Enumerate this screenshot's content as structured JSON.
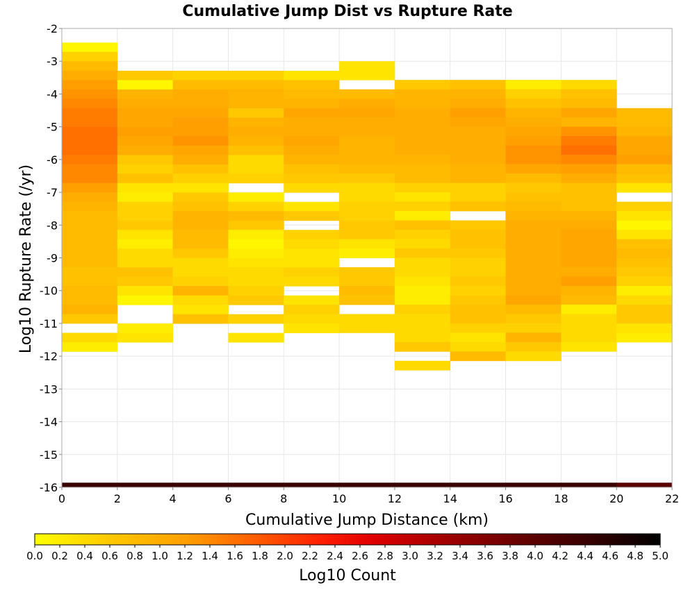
{
  "chart_data": {
    "type": "heatmap",
    "title": "Cumulative Jump Dist vs Rupture Rate",
    "xlabel": "Cumulative Jump Distance (km)",
    "ylabel": "Log10 Rupture Rate (/yr)",
    "xlim": [
      0,
      22
    ],
    "ylim": [
      -16,
      -2
    ],
    "x_ticks": [
      "0",
      "2",
      "4",
      "6",
      "8",
      "10",
      "12",
      "14",
      "16",
      "18",
      "20",
      "22"
    ],
    "y_ticks": [
      "-2",
      "-3",
      "-4",
      "-5",
      "-6",
      "-7",
      "-8",
      "-9",
      "-10",
      "-11",
      "-12",
      "-13",
      "-14",
      "-15",
      "-16"
    ],
    "grid": true,
    "x_bin_width": 2,
    "y_bin_height": 0.2857,
    "colorbar": {
      "label": "Log10 Count",
      "min": 0.0,
      "max": 5.0,
      "ticks": [
        "0.0",
        "0.2",
        "0.4",
        "0.6",
        "0.8",
        "1.0",
        "1.2",
        "1.4",
        "1.6",
        "1.8",
        "2.0",
        "2.2",
        "2.4",
        "2.6",
        "2.8",
        "3.0",
        "3.2",
        "3.4",
        "3.6",
        "3.8",
        "4.0",
        "4.2",
        "4.4",
        "4.6",
        "4.8",
        "5.0"
      ],
      "colormap": [
        [
          0.0,
          "#ffff00"
        ],
        [
          0.6,
          "#ffc800"
        ],
        [
          1.2,
          "#ffa000"
        ],
        [
          1.7,
          "#ff6400"
        ],
        [
          2.3,
          "#ff1e00"
        ],
        [
          2.7,
          "#e00000"
        ],
        [
          3.3,
          "#a00000"
        ],
        [
          3.9,
          "#640000"
        ],
        [
          4.5,
          "#300000"
        ],
        [
          5.0,
          "#000000"
        ]
      ]
    },
    "columns": [
      {
        "x_start": 0,
        "y_top": -2.43,
        "values": [
          0.1,
          0.5,
          0.8,
          1.0,
          1.2,
          1.3,
          1.4,
          1.5,
          1.5,
          1.6,
          1.6,
          1.6,
          1.5,
          1.4,
          1.4,
          1.2,
          1.0,
          0.9,
          0.8,
          0.8,
          0.8,
          0.8,
          0.8,
          0.8,
          0.7,
          0.7,
          0.8,
          0.8,
          0.9,
          0.6,
          null,
          0.4,
          0.2
        ]
      },
      {
        "x_start": 2,
        "y_top": -3.29,
        "values": [
          0.6,
          0.1,
          0.9,
          1.0,
          1.1,
          1.1,
          1.2,
          1.1,
          1.0,
          0.6,
          0.5,
          0.7,
          0.3,
          0.2,
          0.5,
          0.5,
          0.6,
          0.3,
          0.2,
          0.4,
          0.4,
          0.7,
          0.6,
          0.3,
          0.1,
          null,
          null,
          0.2,
          0.3
        ]
      },
      {
        "x_start": 4,
        "y_top": -3.29,
        "values": [
          0.5,
          0.8,
          1.0,
          1.0,
          1.1,
          1.2,
          1.2,
          1.3,
          1.1,
          1.0,
          0.7,
          0.5,
          0.3,
          0.6,
          0.7,
          0.9,
          0.9,
          0.8,
          0.8,
          0.6,
          0.4,
          0.4,
          0.5,
          0.9,
          0.4,
          0.3,
          0.7
        ]
      },
      {
        "x_start": 6,
        "y_top": -3.29,
        "values": [
          0.5,
          0.8,
          0.9,
          0.9,
          0.6,
          0.9,
          1.0,
          0.9,
          0.7,
          0.4,
          0.4,
          0.5,
          null,
          0.2,
          0.5,
          0.8,
          0.6,
          0.2,
          0.1,
          0.2,
          0.3,
          0.4,
          0.4,
          0.5,
          0.6,
          null,
          0.5,
          null,
          0.3
        ]
      },
      {
        "x_start": 8,
        "y_top": -3.29,
        "values": [
          0.3,
          0.7,
          0.8,
          0.9,
          1.1,
          1.0,
          1.0,
          1.1,
          1.0,
          0.9,
          0.7,
          0.6,
          0.4,
          null,
          0.3,
          0.6,
          null,
          0.5,
          0.4,
          0.3,
          0.3,
          0.5,
          0.4,
          null,
          0.3,
          0.5,
          0.4,
          0.3
        ]
      },
      {
        "x_start": 10,
        "y_top": -3.0,
        "values": [
          0.3,
          0.3,
          null,
          0.8,
          1.0,
          1.1,
          1.0,
          1.0,
          0.9,
          0.9,
          0.9,
          0.8,
          0.6,
          0.4,
          0.4,
          0.5,
          0.5,
          0.6,
          0.6,
          0.3,
          0.2,
          null,
          0.6,
          0.6,
          0.8,
          0.7,
          null,
          0.4,
          0.4
        ]
      },
      {
        "x_start": 12,
        "y_top": -3.57,
        "values": [
          0.6,
          0.9,
          0.9,
          1.0,
          1.0,
          1.0,
          1.0,
          1.0,
          0.9,
          0.8,
          0.8,
          0.5,
          0.3,
          0.5,
          0.2,
          0.7,
          0.5,
          0.4,
          0.6,
          0.4,
          0.4,
          0.3,
          0.2,
          0.2,
          0.5,
          0.4,
          0.4,
          0.4,
          0.6,
          null,
          0.4
        ]
      },
      {
        "x_start": 14,
        "y_top": -3.57,
        "values": [
          0.7,
          0.9,
          1.0,
          1.2,
          1.1,
          1.0,
          1.0,
          1.0,
          1.0,
          0.9,
          0.9,
          0.5,
          0.5,
          0.7,
          null,
          0.6,
          0.7,
          0.7,
          0.6,
          0.5,
          0.5,
          0.6,
          0.5,
          0.6,
          0.7,
          0.7,
          0.5,
          0.3,
          0.4,
          0.8
        ]
      },
      {
        "x_start": 16,
        "y_top": -3.57,
        "values": [
          0.2,
          0.5,
          0.7,
          0.9,
          1.0,
          1.1,
          1.2,
          1.3,
          1.3,
          1.1,
          0.8,
          0.6,
          0.7,
          0.8,
          0.9,
          1.0,
          1.0,
          1.0,
          1.0,
          1.0,
          1.0,
          1.0,
          1.0,
          1.1,
          0.8,
          0.6,
          0.5,
          0.9,
          0.6,
          0.4
        ]
      },
      {
        "x_start": 18,
        "y_top": -3.57,
        "values": [
          0.4,
          0.7,
          0.8,
          1.1,
          0.9,
          1.3,
          1.5,
          1.6,
          1.4,
          1.2,
          1.0,
          0.7,
          0.7,
          0.7,
          0.9,
          1.0,
          1.1,
          1.1,
          1.1,
          1.1,
          1.0,
          1.2,
          0.9,
          0.8,
          0.2,
          0.4,
          0.4,
          0.4,
          0.3
        ]
      },
      {
        "x_start": 20,
        "y_top": -4.43,
        "values": [
          0.8,
          0.8,
          0.9,
          1.1,
          1.1,
          1.2,
          0.8,
          0.7,
          0.3,
          null,
          0.5,
          0.3,
          0.1,
          0.3,
          0.7,
          0.8,
          0.7,
          0.6,
          0.5,
          0.2,
          0.4,
          0.6,
          0.6,
          0.3,
          0.2
        ]
      }
    ],
    "bottom_row": {
      "y_start": -16.0,
      "y_end": -15.86,
      "values": [
        4.4,
        4.4,
        4.4,
        4.4,
        4.4,
        4.4,
        4.4,
        4.4,
        4.4,
        4.4,
        4.0
      ]
    }
  }
}
